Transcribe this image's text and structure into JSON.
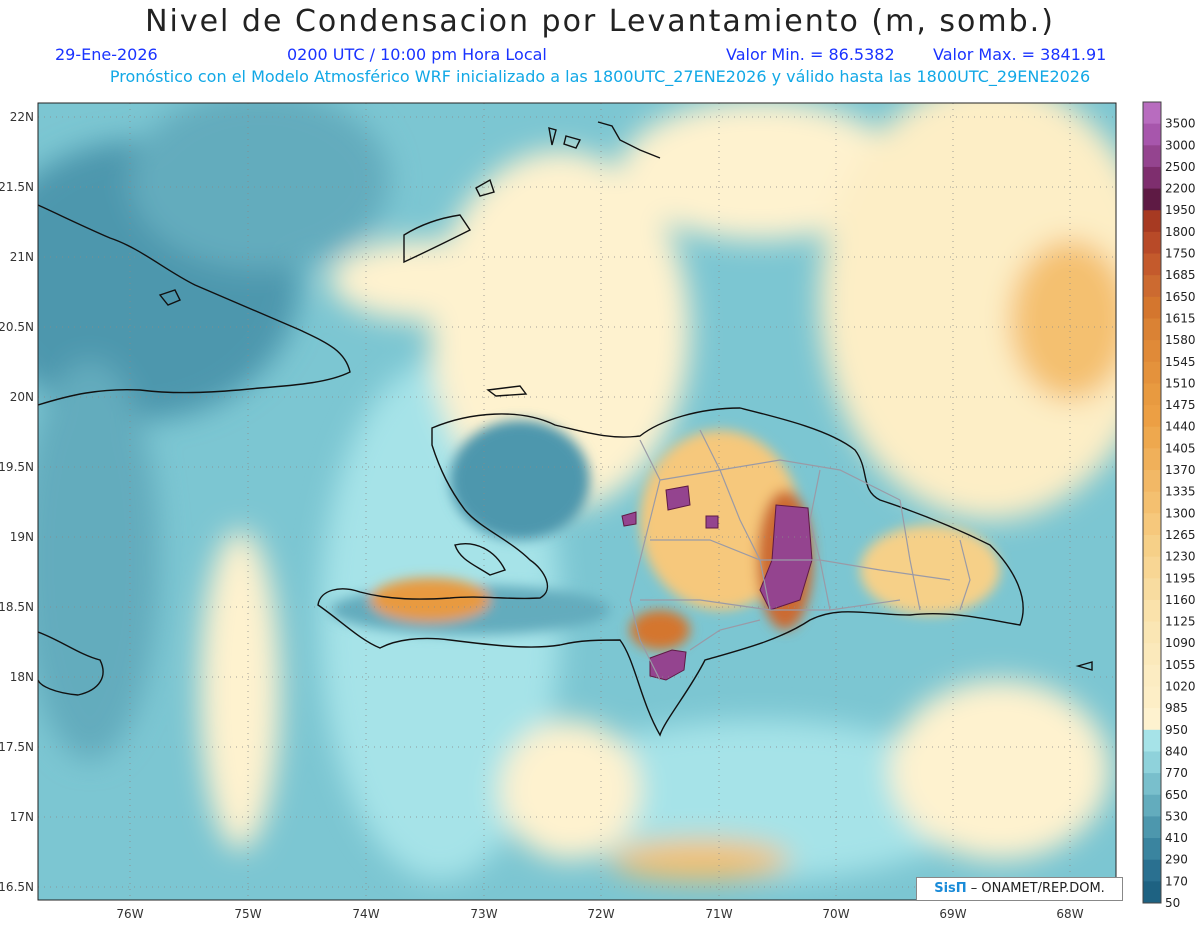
{
  "header": {
    "title": "Nivel de Condensacion por Levantamiento (m, somb.)",
    "date": "29-Ene-2026",
    "time": "0200 UTC / 10:00 pm Hora Local",
    "min_value": "Valor Min. = 86.5382",
    "max_value": "Valor Max. = 3841.91",
    "model_info": "Pronóstico con el Modelo Atmosférico WRF inicializado a las 1800UTC_27ENE2026 y válido hasta las  1800UTC_29ENE2026"
  },
  "map": {
    "lat_labels": [
      "22N",
      "21.5N",
      "21N",
      "20.5N",
      "20N",
      "19.5N",
      "19N",
      "18.5N",
      "18N",
      "17.5N",
      "17N",
      "16.5N"
    ],
    "lon_labels": [
      "76W",
      "75W",
      "74W",
      "73W",
      "72W",
      "71W",
      "70W",
      "69W",
      "68W"
    ],
    "regions": [
      "Cuba",
      "Bahamas",
      "Haiti",
      "Dominican Republic",
      "Jamaica",
      "Turks and Caicos"
    ]
  },
  "legend": {
    "values": [
      "3500",
      "3000",
      "2500",
      "2200",
      "1950",
      "1800",
      "1750",
      "1685",
      "1650",
      "1615",
      "1580",
      "1545",
      "1510",
      "1475",
      "1440",
      "1405",
      "1370",
      "1335",
      "1300",
      "1265",
      "1230",
      "1195",
      "1160",
      "1125",
      "1090",
      "1055",
      "1020",
      "985",
      "950",
      "840",
      "770",
      "650",
      "530",
      "410",
      "290",
      "170",
      "50"
    ],
    "colors": [
      "#b86cbf",
      "#a756ac",
      "#94448f",
      "#7e2e6e",
      "#5e1a44",
      "#a73a22",
      "#b84a28",
      "#c45a2c",
      "#cc6a30",
      "#d4762e",
      "#da8234",
      "#e08a38",
      "#e4923c",
      "#e89a40",
      "#ec9f44",
      "#eea84e",
      "#f0b05a",
      "#f2b866",
      "#f4c070",
      "#f6c87c",
      "#f6d088",
      "#f8d694",
      "#f8dca0",
      "#fae2ab",
      "#fae6b4",
      "#fbe9bb",
      "#fcecc2",
      "#fdeec6",
      "#fef2cf",
      "#a6e3e8",
      "#8fd2db",
      "#79bfcc",
      "#63acbd",
      "#4d97ad",
      "#3a849f",
      "#2a7090",
      "#1e6282"
    ]
  },
  "credit": {
    "brand": "SisΠ",
    "text": " – ONAMET/REP.DOM."
  },
  "colors": {
    "ocean_mid": "#7cc6d2",
    "land_outline": "#111111",
    "province_lines": "#9a9aa6"
  }
}
